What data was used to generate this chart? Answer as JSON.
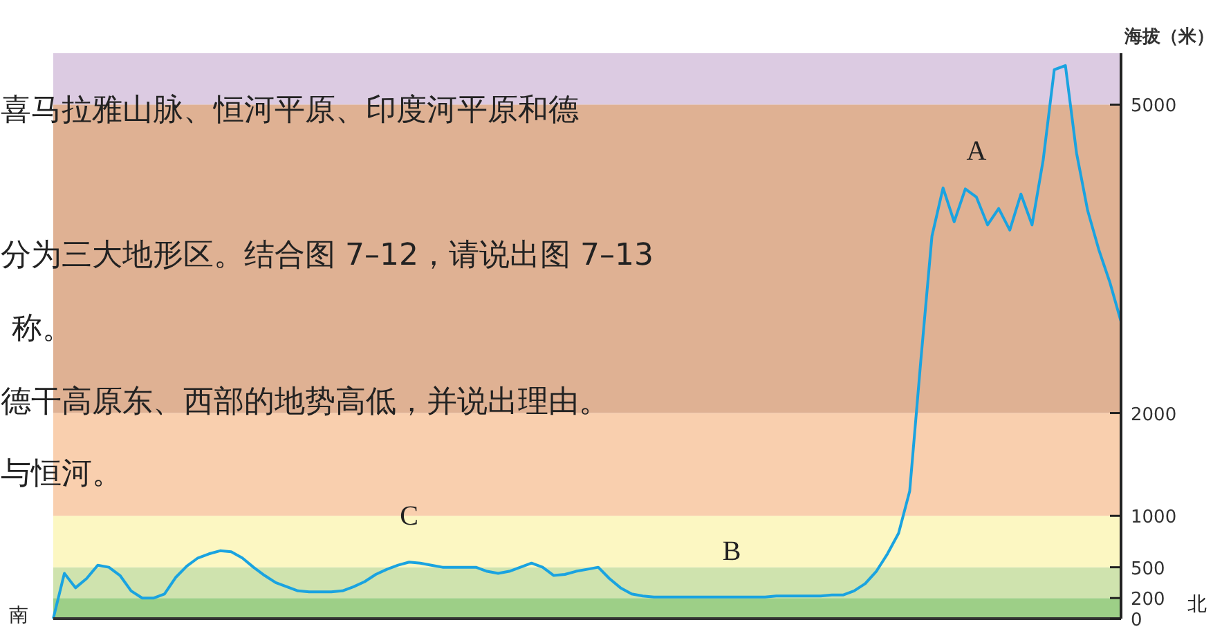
{
  "chart_data": {
    "type": "line",
    "categories": [
      null,
      null,
      null,
      null,
      null,
      null,
      null,
      null,
      null,
      null,
      null,
      null,
      null,
      null,
      null,
      null,
      null,
      null,
      null,
      null,
      null,
      null,
      null,
      null,
      null,
      null,
      null,
      null,
      null,
      null,
      null,
      null,
      null,
      null,
      null,
      null,
      null,
      null,
      null,
      null,
      null,
      null,
      null,
      null,
      null,
      null,
      null,
      null,
      null,
      null,
      null,
      null,
      null,
      null,
      null,
      null,
      null,
      null,
      null,
      null,
      null,
      null,
      null,
      null,
      null,
      null,
      null,
      null,
      null,
      null,
      null,
      null,
      null,
      null,
      null,
      null,
      null,
      null,
      null,
      null,
      null,
      null,
      null,
      null,
      null,
      null,
      null,
      null,
      null,
      null,
      null,
      null,
      null,
      null,
      null,
      null,
      null
    ],
    "series": [
      {
        "color": "#1aa3e0",
        "values": [
          0,
          440,
          300,
          390,
          520,
          500,
          420,
          270,
          200,
          200,
          240,
          400,
          510,
          590,
          630,
          660,
          650,
          590,
          500,
          420,
          350,
          310,
          270,
          260,
          260,
          260,
          270,
          310,
          360,
          430,
          480,
          520,
          550,
          540,
          520,
          500,
          500,
          500,
          500,
          460,
          440,
          460,
          500,
          540,
          500,
          420,
          430,
          460,
          480,
          500,
          390,
          300,
          240,
          220,
          210,
          210,
          210,
          210,
          210,
          210,
          210,
          210,
          210,
          210,
          210,
          220,
          220,
          220,
          220,
          220,
          230,
          230,
          270,
          340,
          460,
          630,
          830,
          1240,
          2510,
          3720,
          4190,
          3860,
          4180,
          4100,
          3830,
          3990,
          3780,
          4130,
          3830,
          4460,
          5340,
          5380,
          4530,
          3970,
          3590,
          3270,
          2890
        ],
        "value_labels": [
          null,
          null,
          null,
          null,
          null,
          null,
          null,
          null,
          null,
          null,
          null,
          null,
          null,
          null,
          null,
          null,
          null,
          null,
          null,
          null,
          null,
          null,
          null,
          null,
          null,
          null,
          null,
          null,
          null,
          null,
          null,
          null,
          "C",
          null,
          null,
          null,
          null,
          null,
          null,
          null,
          null,
          null,
          null,
          null,
          null,
          null,
          null,
          null,
          null,
          null,
          null,
          null,
          null,
          null,
          null,
          null,
          null,
          null,
          null,
          null,
          null,
          "B",
          null,
          null,
          null,
          null,
          null,
          null,
          null,
          null,
          null,
          null,
          null,
          null,
          null,
          null,
          null,
          null,
          null,
          null,
          null,
          null,
          null,
          "A",
          null,
          null,
          null,
          null,
          null,
          null,
          null,
          null,
          null,
          null,
          null,
          null,
          null
        ]
      }
    ],
    "ylabel": "海拔（米）",
    "ylim": [
      0,
      5500
    ],
    "yticks": [
      0,
      200,
      500,
      1000,
      2000,
      5000
    ],
    "tick_labels": "y",
    "grid": false,
    "bands": [
      {
        "axis": "y",
        "from": 0,
        "to": 200,
        "color": "#9dcf87"
      },
      {
        "axis": "y",
        "from": 200,
        "to": 500,
        "color": "#cfe3ae"
      },
      {
        "axis": "y",
        "from": 500,
        "to": 1000,
        "color": "#fcf7c2"
      },
      {
        "axis": "y",
        "from": 1000,
        "to": 2000,
        "color": "#f9cfae"
      },
      {
        "axis": "y",
        "from": 2000,
        "to": 5000,
        "color": "#dfb193"
      },
      {
        "axis": "y",
        "from": 5000,
        "to": 5500,
        "color": "#dccbe2"
      }
    ],
    "annotations": [
      "喜马拉雅山脉、恒河平原、印度河平原和德",
      "分为三大地形区。结合图 7–12，请说出图 7–13",
      "称。",
      "德干高原东、西部的地势高低，并说出理由。",
      "与恒河。",
      "南",
      "北"
    ]
  }
}
